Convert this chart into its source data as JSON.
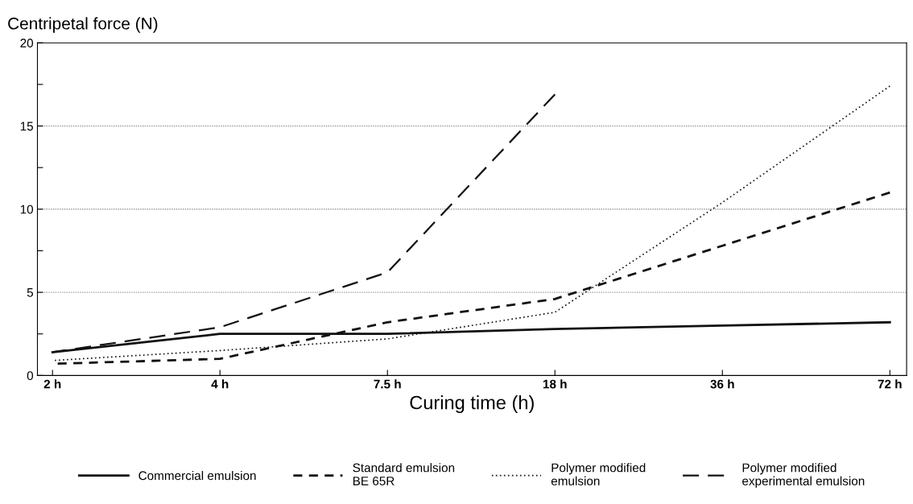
{
  "chart_data": {
    "type": "line",
    "xlabel": "Curing time (h)",
    "ylabel": "Centripetal force (N)",
    "categories": [
      "2 h",
      "4 h",
      "7.5 h",
      "18 h",
      "36 h",
      "72 h"
    ],
    "series": [
      {
        "name": "Commercial emulsion",
        "color": "#111111",
        "line_style": "solid",
        "values": [
          1.4,
          2.5,
          2.5,
          2.8,
          3.0,
          3.2
        ]
      },
      {
        "name": "Standard emulsion\nBE 65R",
        "color": "#111111",
        "line_style": "dashed",
        "values": [
          0.7,
          1.0,
          3.2,
          4.6,
          7.8,
          11.0
        ]
      },
      {
        "name": "Polymer modified\nemulsion",
        "color": "#111111",
        "line_style": "dotted",
        "values": [
          0.9,
          1.5,
          2.2,
          3.8,
          10.4,
          17.4
        ]
      },
      {
        "name": "Polymer modified\nexperimental emulsion",
        "color": "#111111",
        "line_style": "longdash",
        "values": [
          1.4,
          2.9,
          6.2,
          16.9,
          null,
          null
        ]
      }
    ],
    "ylim": [
      0,
      20
    ],
    "yticks": [
      0,
      {
        "value": 2.5,
        "label": null
      },
      5,
      {
        "value": 7.5,
        "label": null
      },
      10,
      {
        "value": 12.5,
        "label": null
      },
      15,
      {
        "value": 17.5,
        "label": null
      },
      20
    ],
    "grid": "y",
    "legend": "bottom",
    "marker": "none"
  }
}
